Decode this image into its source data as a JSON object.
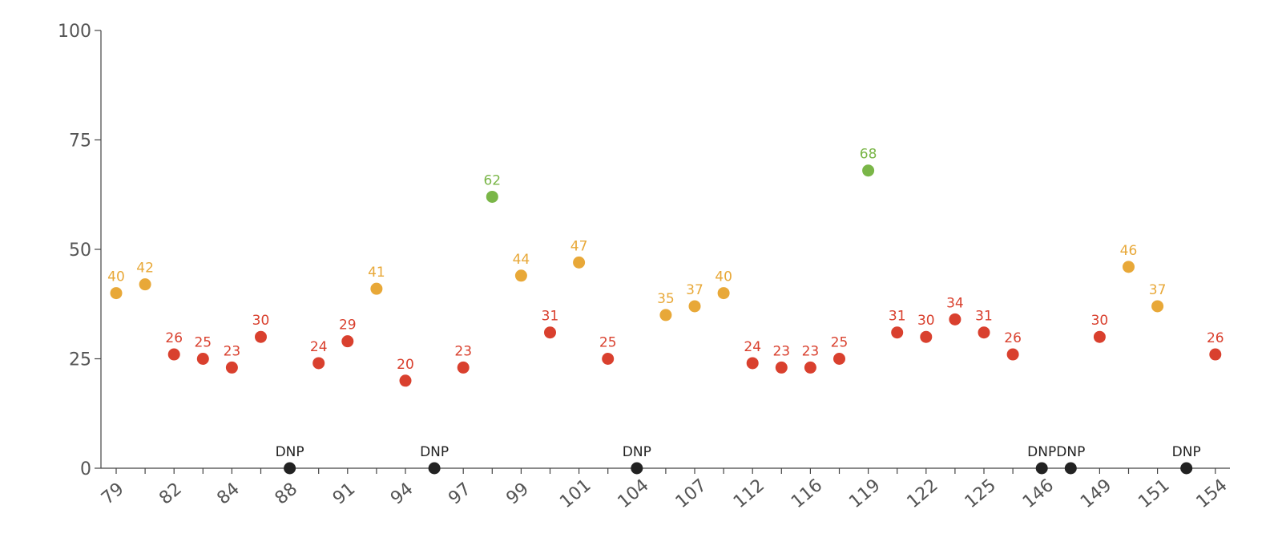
{
  "chart_data": {
    "type": "scatter",
    "title": "",
    "xlabel": "",
    "ylabel": "",
    "ylim": [
      0,
      100
    ],
    "y_ticks": [
      0,
      25,
      50,
      75,
      100
    ],
    "grid": false,
    "x_tick_labels": [
      "79",
      "82",
      "84",
      "88",
      "91",
      "94",
      "97",
      "99",
      "101",
      "104",
      "107",
      "112",
      "116",
      "119",
      "122",
      "125",
      "146",
      "149",
      "151",
      "154"
    ],
    "colors": {
      "high": "#7ab648",
      "mid": "#e8a838",
      "low": "#d9402e",
      "dnp": "#222222"
    },
    "points": [
      {
        "value": 40,
        "label": "40",
        "category": "mid"
      },
      {
        "value": 42,
        "label": "42",
        "category": "mid"
      },
      {
        "value": 26,
        "label": "26",
        "category": "low"
      },
      {
        "value": 25,
        "label": "25",
        "category": "low"
      },
      {
        "value": 23,
        "label": "23",
        "category": "low"
      },
      {
        "value": 30,
        "label": "30",
        "category": "low"
      },
      {
        "value": 0,
        "label": "DNP",
        "category": "dnp"
      },
      {
        "value": 24,
        "label": "24",
        "category": "low"
      },
      {
        "value": 29,
        "label": "29",
        "category": "low"
      },
      {
        "value": 41,
        "label": "41",
        "category": "mid"
      },
      {
        "value": 20,
        "label": "20",
        "category": "low"
      },
      {
        "value": 0,
        "label": "DNP",
        "category": "dnp"
      },
      {
        "value": 23,
        "label": "23",
        "category": "low"
      },
      {
        "value": 62,
        "label": "62",
        "category": "high"
      },
      {
        "value": 44,
        "label": "44",
        "category": "mid"
      },
      {
        "value": 31,
        "label": "31",
        "category": "low"
      },
      {
        "value": 47,
        "label": "47",
        "category": "mid"
      },
      {
        "value": 25,
        "label": "25",
        "category": "low"
      },
      {
        "value": 0,
        "label": "DNP",
        "category": "dnp"
      },
      {
        "value": 35,
        "label": "35",
        "category": "mid"
      },
      {
        "value": 37,
        "label": "37",
        "category": "mid"
      },
      {
        "value": 40,
        "label": "40",
        "category": "mid"
      },
      {
        "value": 24,
        "label": "24",
        "category": "low"
      },
      {
        "value": 23,
        "label": "23",
        "category": "low"
      },
      {
        "value": 23,
        "label": "23",
        "category": "low"
      },
      {
        "value": 25,
        "label": "25",
        "category": "low"
      },
      {
        "value": 68,
        "label": "68",
        "category": "high"
      },
      {
        "value": 31,
        "label": "31",
        "category": "low"
      },
      {
        "value": 30,
        "label": "30",
        "category": "low"
      },
      {
        "value": 34,
        "label": "34",
        "category": "low"
      },
      {
        "value": 31,
        "label": "31",
        "category": "low"
      },
      {
        "value": 26,
        "label": "26",
        "category": "low"
      },
      {
        "value": 0,
        "label": "DNP",
        "category": "dnp"
      },
      {
        "value": 0,
        "label": "DNP",
        "category": "dnp"
      },
      {
        "value": 30,
        "label": "30",
        "category": "low"
      },
      {
        "value": 46,
        "label": "46",
        "category": "mid"
      },
      {
        "value": 37,
        "label": "37",
        "category": "mid"
      },
      {
        "value": 0,
        "label": "DNP",
        "category": "dnp"
      },
      {
        "value": 26,
        "label": "26",
        "category": "low"
      }
    ]
  }
}
